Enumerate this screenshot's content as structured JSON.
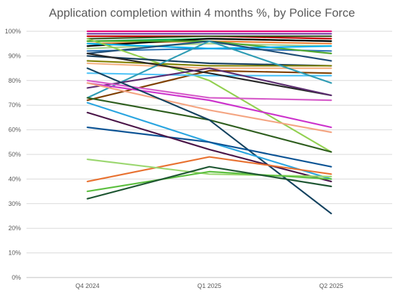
{
  "chart_data": {
    "type": "line",
    "title": "Application completion within 4 months %, by Police Force",
    "categories": [
      "Q4 2024",
      "Q1 2025",
      "Q2 2025"
    ],
    "ylim": [
      0,
      100
    ],
    "yticks": [
      "0%",
      "10%",
      "20%",
      "30%",
      "40%",
      "50%",
      "60%",
      "70%",
      "80%",
      "90%",
      "100%"
    ],
    "grid": true,
    "legend": "none",
    "series": [
      {
        "color": "#e4007c",
        "values": [
          100,
          100,
          100
        ]
      },
      {
        "color": "#7030a0",
        "values": [
          99,
          99,
          99
        ]
      },
      {
        "color": "#c00000",
        "values": [
          98,
          98,
          97
        ]
      },
      {
        "color": "#375623",
        "values": [
          97,
          98,
          98
        ]
      },
      {
        "color": "#00b050",
        "values": [
          96,
          97,
          96
        ]
      },
      {
        "color": "#ed7d31",
        "values": [
          95,
          96,
          95
        ]
      },
      {
        "color": "#000000",
        "values": [
          94,
          97,
          96
        ]
      },
      {
        "color": "#a9d08e",
        "values": [
          93,
          95,
          94
        ]
      },
      {
        "color": "#2e75b6",
        "values": [
          92,
          93,
          92
        ]
      },
      {
        "color": "#4ea72e",
        "values": [
          96,
          96,
          91
        ]
      },
      {
        "color": "#00b0f0",
        "values": [
          95,
          93,
          94
        ]
      },
      {
        "color": "#1f4e78",
        "values": [
          91,
          96,
          88
        ]
      },
      {
        "color": "#92d050",
        "values": [
          97,
          80,
          51
        ]
      },
      {
        "color": "#153d5c",
        "values": [
          90,
          87,
          86
        ]
      },
      {
        "color": "#808000",
        "values": [
          88,
          86,
          86
        ]
      },
      {
        "color": "#f4b183",
        "values": [
          87,
          85,
          85
        ]
      },
      {
        "color": "#7f3f00",
        "values": [
          72,
          84,
          83
        ]
      },
      {
        "color": "#4fc3f7",
        "values": [
          83,
          82,
          82
        ]
      },
      {
        "color": "#2f9cb4",
        "values": [
          73,
          96,
          79
        ]
      },
      {
        "color": "#262626",
        "values": [
          91,
          83,
          74
        ]
      },
      {
        "color": "#5b2c6f",
        "values": [
          77,
          85,
          74
        ]
      },
      {
        "color": "#d65ac9",
        "values": [
          80,
          73,
          72
        ]
      },
      {
        "color": "#cc33cc",
        "values": [
          79,
          72,
          61
        ]
      },
      {
        "color": "#f4a582",
        "values": [
          79,
          68,
          59
        ]
      },
      {
        "color": "#2e5e1e",
        "values": [
          73,
          64,
          51
        ]
      },
      {
        "color": "#154360",
        "values": [
          85,
          64,
          26
        ]
      },
      {
        "color": "#2aa5e0",
        "values": [
          71,
          55,
          40
        ]
      },
      {
        "color": "#0b5394",
        "values": [
          61,
          55,
          45
        ]
      },
      {
        "color": "#4a1548",
        "values": [
          67,
          52,
          39
        ]
      },
      {
        "color": "#e87130",
        "values": [
          39,
          49,
          42
        ]
      },
      {
        "color": "#9bd770",
        "values": [
          48,
          42,
          41
        ]
      },
      {
        "color": "#5cbf3f",
        "values": [
          35,
          43,
          40
        ]
      },
      {
        "color": "#1e5632",
        "values": [
          32,
          45,
          37
        ]
      }
    ]
  }
}
